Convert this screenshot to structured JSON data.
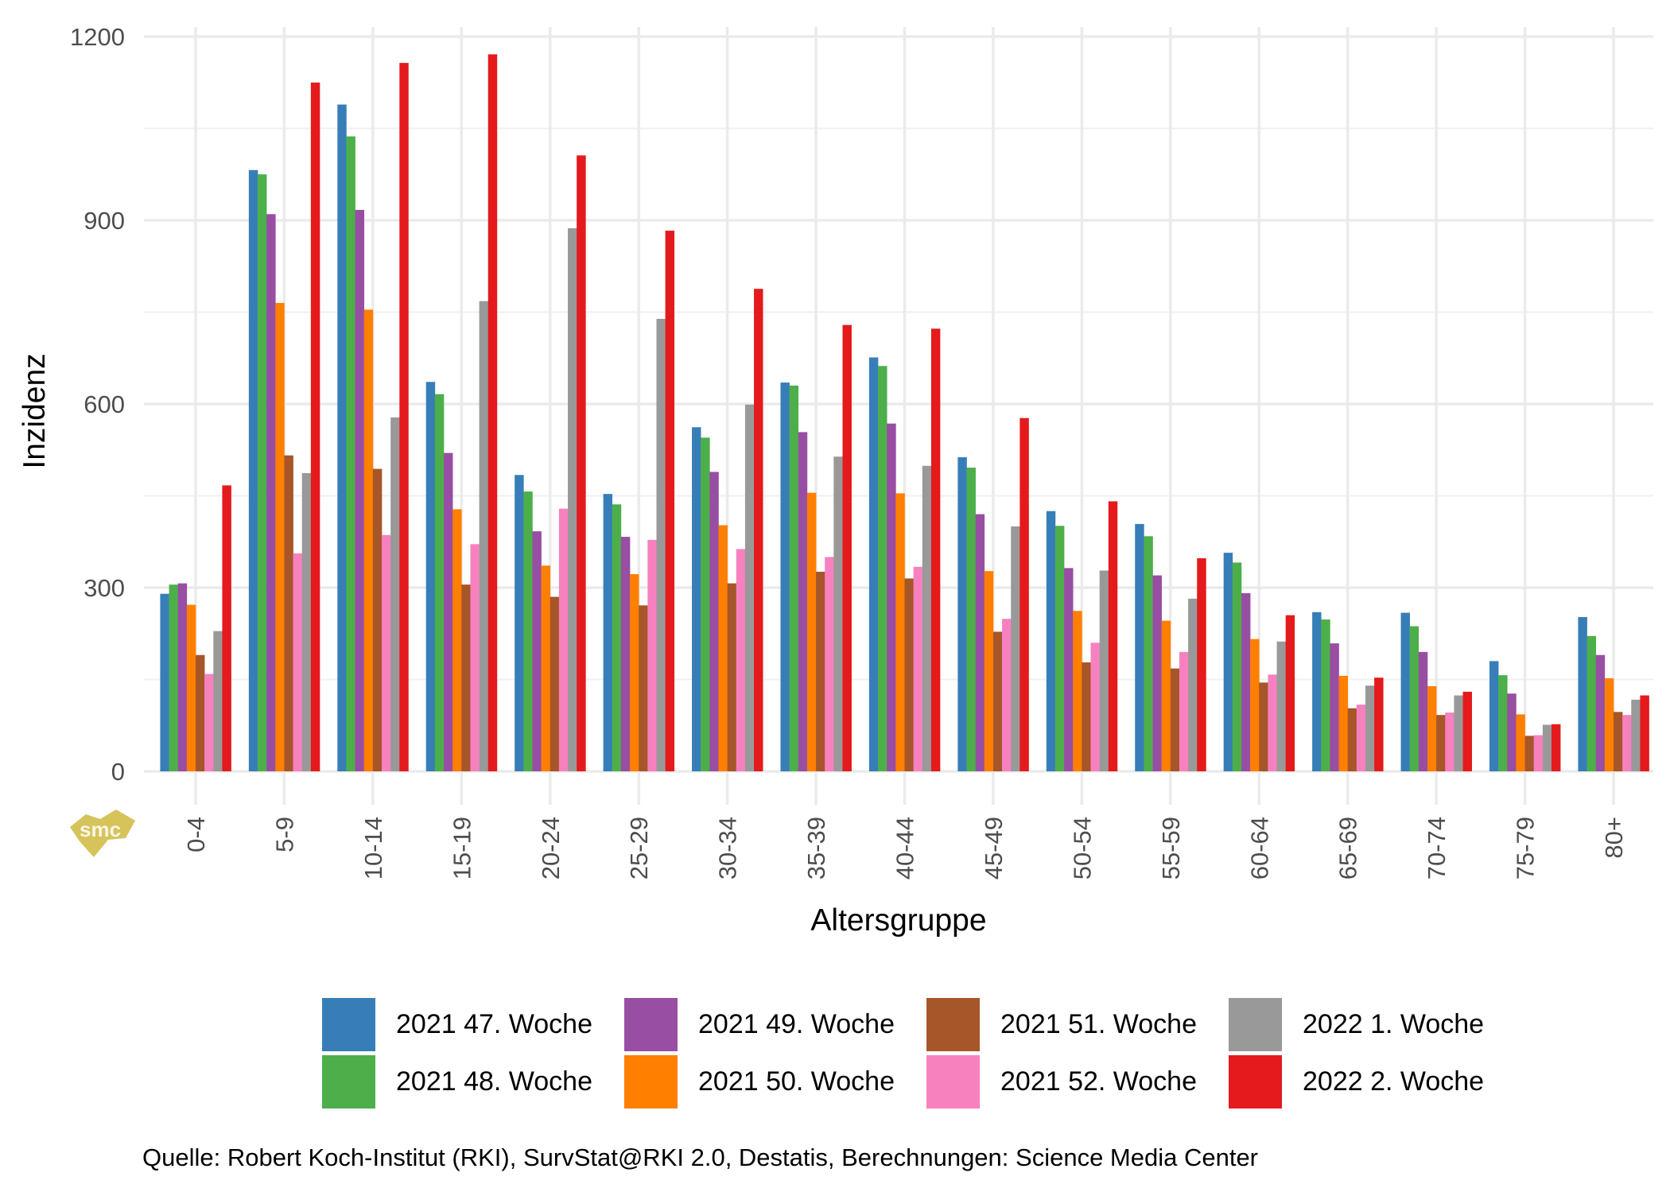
{
  "chart_data": {
    "type": "bar",
    "title": "",
    "xlabel": "Altersgruppe",
    "ylabel": "Inzidenz",
    "ylim": [
      0,
      1200
    ],
    "yticks": [
      0,
      300,
      600,
      900,
      1200
    ],
    "grid": true,
    "legend_position": "bottom",
    "categories": [
      "0-4",
      "5-9",
      "10-14",
      "15-19",
      "20-24",
      "25-29",
      "30-34",
      "35-39",
      "40-44",
      "45-49",
      "50-54",
      "55-59",
      "60-64",
      "65-69",
      "70-74",
      "75-79",
      "80+"
    ],
    "series": [
      {
        "name": "2021 47. Woche",
        "color": "#377EB8",
        "values": [
          290,
          982,
          1089,
          636,
          484,
          453,
          562,
          635,
          676,
          513,
          425,
          404,
          357,
          260,
          259,
          180,
          252
        ]
      },
      {
        "name": "2021 48. Woche",
        "color": "#4DAF4A",
        "values": [
          305,
          975,
          1037,
          616,
          457,
          436,
          545,
          630,
          662,
          496,
          401,
          384,
          341,
          248,
          237,
          157,
          221
        ]
      },
      {
        "name": "2021 49. Woche",
        "color": "#984EA3",
        "values": [
          307,
          910,
          917,
          520,
          392,
          383,
          489,
          554,
          568,
          420,
          332,
          320,
          291,
          209,
          195,
          127,
          190
        ]
      },
      {
        "name": "2021 50. Woche",
        "color": "#FF7F00",
        "values": [
          272,
          765,
          754,
          428,
          336,
          322,
          402,
          455,
          454,
          327,
          262,
          246,
          216,
          156,
          139,
          93,
          152
        ]
      },
      {
        "name": "2021 51. Woche",
        "color": "#A65628",
        "values": [
          190,
          516,
          494,
          305,
          285,
          271,
          307,
          326,
          315,
          228,
          178,
          168,
          145,
          103,
          92,
          58,
          97
        ]
      },
      {
        "name": "2021 52. Woche",
        "color": "#F781BF",
        "values": [
          159,
          356,
          386,
          371,
          429,
          378,
          363,
          350,
          334,
          249,
          210,
          195,
          158,
          109,
          96,
          59,
          92
        ]
      },
      {
        "name": "2022 1. Woche",
        "color": "#999999",
        "values": [
          229,
          487,
          578,
          768,
          887,
          739,
          599,
          514,
          499,
          400,
          328,
          282,
          212,
          140,
          124,
          76,
          117
        ]
      },
      {
        "name": "2022 2. Woche",
        "color": "#E41A1C",
        "values": [
          467,
          1125,
          1157,
          1171,
          1006,
          883,
          788,
          729,
          723,
          577,
          441,
          348,
          255,
          153,
          130,
          77,
          124
        ]
      }
    ],
    "caption": "Quelle: Robert Koch-Institut (RKI), SurvStat@RKI 2.0, Destatis, Berechnungen: Science Media Center",
    "logo_text": "smc"
  }
}
